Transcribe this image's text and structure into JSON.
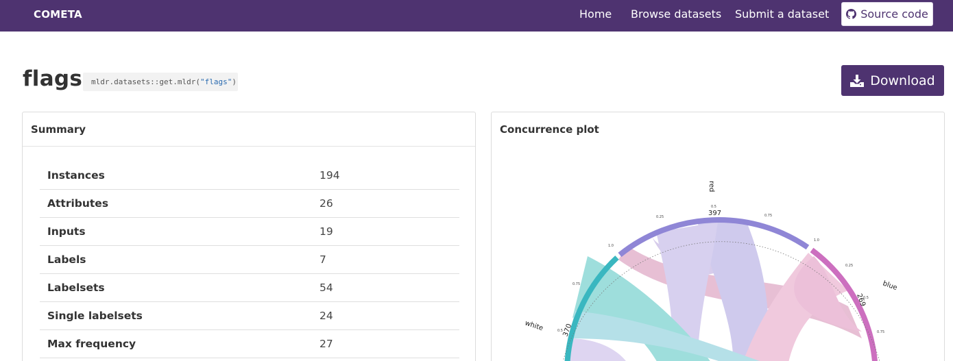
{
  "navbar": {
    "brand": "COMETA",
    "links": [
      "Home",
      "Browse datasets",
      "Submit a dataset"
    ],
    "source_label": "Source code",
    "source_icon": "github-icon"
  },
  "page": {
    "title": "flags",
    "code_prefix": "mldr.datasets::get.mldr(",
    "code_arg": "\"flags\"",
    "code_suffix": ")",
    "download_label": "Download",
    "download_icon": "download-icon"
  },
  "summary": {
    "title": "Summary",
    "rows": [
      {
        "key": "Instances",
        "value": "194"
      },
      {
        "key": "Attributes",
        "value": "26"
      },
      {
        "key": "Inputs",
        "value": "19"
      },
      {
        "key": "Labels",
        "value": "7"
      },
      {
        "key": "Labelsets",
        "value": "54"
      },
      {
        "key": "Single labelsets",
        "value": "24"
      },
      {
        "key": "Max frequency",
        "value": "27"
      }
    ]
  },
  "concurrence": {
    "title": "Concurrence plot",
    "labels": {
      "red": {
        "name": "red",
        "count": "397"
      },
      "blue": {
        "name": "blue",
        "count": "269"
      },
      "white": {
        "name": "white",
        "count": "370"
      }
    },
    "ticks": [
      "0.5",
      "0.25",
      "0.75",
      "1.0"
    ],
    "colors": {
      "red": "#8f86d6",
      "blue": "#cc6fbf",
      "white": "#3ab7c0"
    }
  },
  "colors": {
    "brand": "#4e3370"
  }
}
